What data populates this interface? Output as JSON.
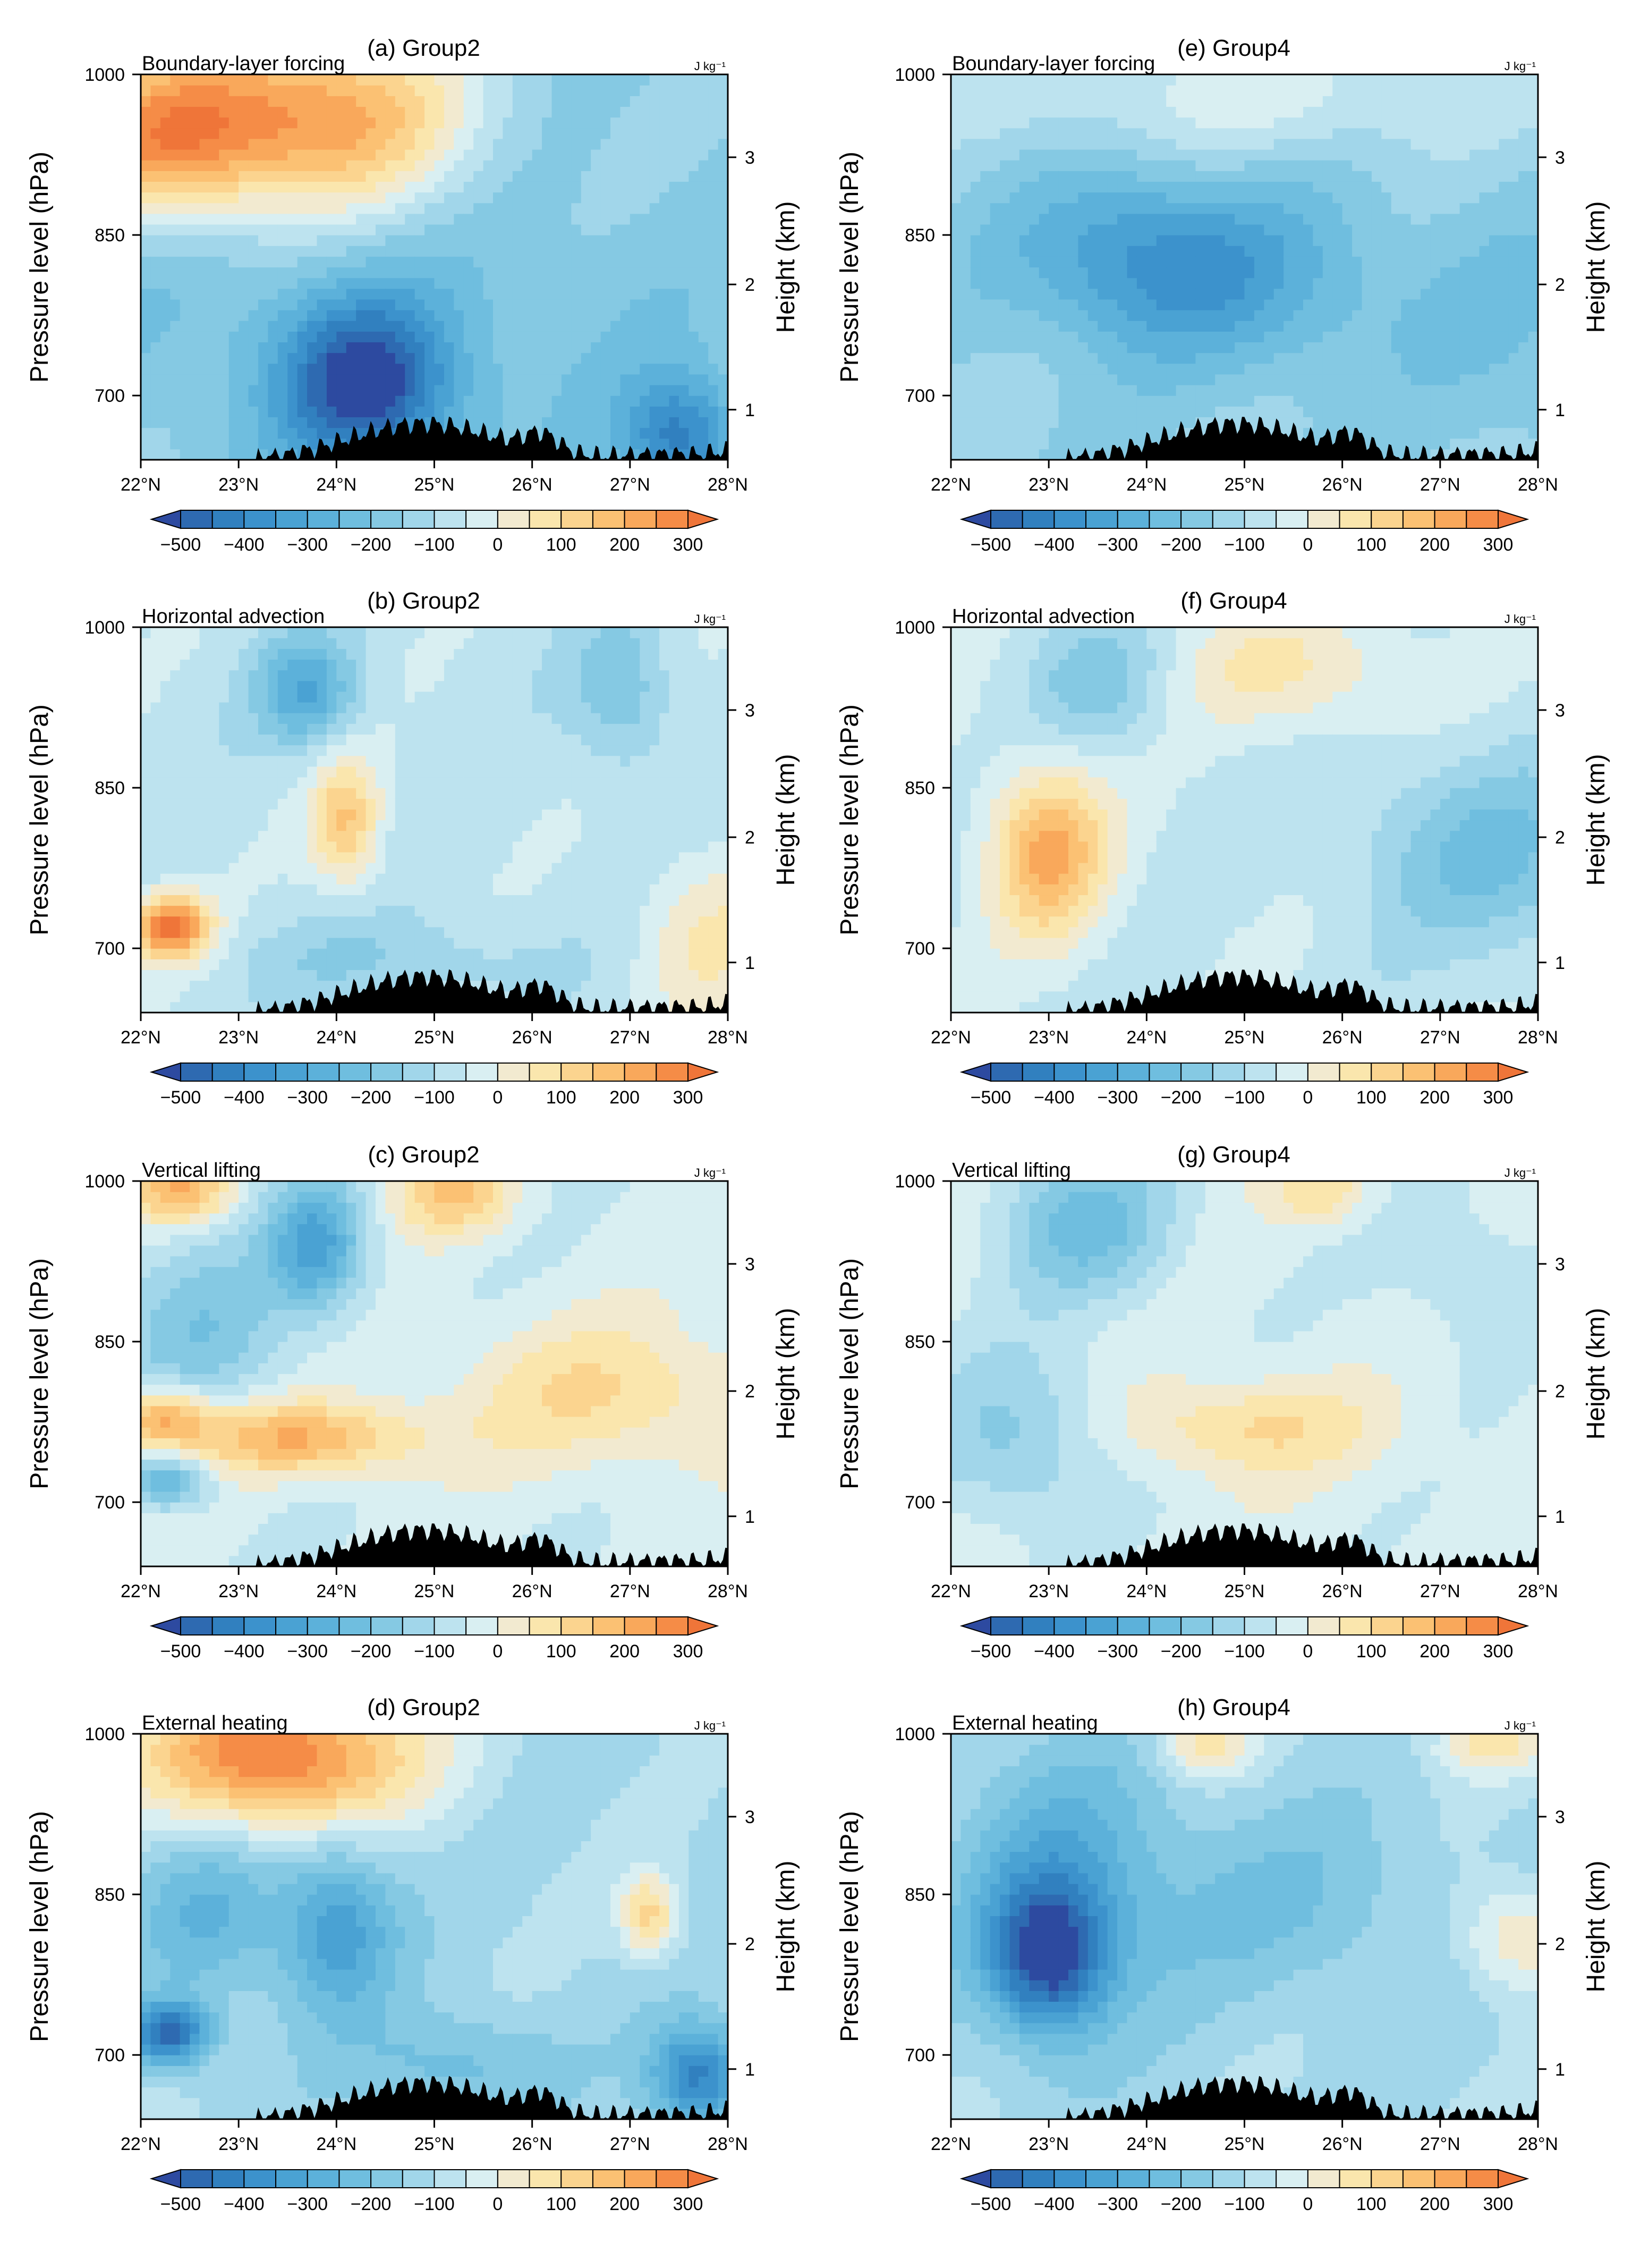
{
  "figure": {
    "colorbar": {
      "levels": [
        -500,
        -450,
        -400,
        -350,
        -300,
        -250,
        -200,
        -150,
        -100,
        -50,
        0,
        50,
        100,
        150,
        200,
        250,
        300
      ],
      "tick_labels": [
        "−500",
        "−400",
        "−300",
        "−200",
        "−100",
        "0",
        "100",
        "200",
        "300"
      ],
      "colors": [
        "#2d4aa0",
        "#2e6ab1",
        "#3180bf",
        "#3c92cc",
        "#4aa2d3",
        "#5cb1da",
        "#6fbedf",
        "#85c9e3",
        "#a1d6ea",
        "#bde3ef",
        "#d9eff2",
        "#f2ead0",
        "#fae6ad",
        "#fbd48f",
        "#fbc173",
        "#f9a85b",
        "#f58c47",
        "#ef7539"
      ]
    },
    "axes": {
      "left_label": "Pressure level (hPa)",
      "right_label": "Height (km)",
      "pressure_ticks": [
        "700",
        "850",
        "1000"
      ],
      "height_ticks": [
        "3",
        "2",
        "1"
      ],
      "lat_ticks": [
        "22°N",
        "23°N",
        "24°N",
        "25°N",
        "26°N",
        "27°N",
        "28°N"
      ],
      "unit": "J kg⁻¹",
      "lat_range": [
        22,
        28
      ],
      "pressure_range": [
        1000,
        640
      ]
    }
  },
  "panels": [
    {
      "title": "(a) Group2",
      "label": "Boundary-layer forcing"
    },
    {
      "title": "(e) Group4",
      "label": "Boundary-layer forcing"
    },
    {
      "title": "(b) Group2",
      "label": "Horizontal advection"
    },
    {
      "title": "(f) Group4",
      "label": "Horizontal advection"
    },
    {
      "title": "(c) Group2",
      "label": "Vertical lifting"
    },
    {
      "title": "(g) Group4",
      "label": "Vertical lifting"
    },
    {
      "title": "(d) Group2",
      "label": "External heating"
    },
    {
      "title": "(h) Group4",
      "label": "External heating"
    }
  ],
  "chart_data": [
    {
      "type": "heatmap",
      "title": "(a) Group2",
      "annotation": "Boundary-layer forcing",
      "xlabel": "",
      "ylabel": "Pressure level (hPa)",
      "y2label": "Height (km)",
      "xlim": [
        22,
        28
      ],
      "ylim": [
        1000,
        640
      ],
      "features": [
        {
          "lat": 23.8,
          "p": 680,
          "value": 250,
          "sx": 1.5,
          "sy": 90
        },
        {
          "lat": 22.2,
          "p": 700,
          "value": 180,
          "sx": 1.0,
          "sy": 80
        },
        {
          "lat": 24.3,
          "p": 930,
          "value": -520,
          "sx": 0.9,
          "sy": 80
        },
        {
          "lat": 27.5,
          "p": 980,
          "value": -420,
          "sx": 0.6,
          "sy": 60
        },
        {
          "lat": 23.0,
          "p": 850,
          "value": -200,
          "sx": 2.5,
          "sy": 150
        },
        {
          "lat": 26.5,
          "p": 870,
          "value": -180,
          "sx": 2.0,
          "sy": 150
        }
      ],
      "background": -150
    },
    {
      "type": "heatmap",
      "title": "(e) Group4",
      "annotation": "Boundary-layer forcing",
      "xlabel": "",
      "ylabel": "Pressure level (hPa)",
      "y2label": "Height (km)",
      "xlim": [
        22,
        28
      ],
      "ylim": [
        1000,
        640
      ],
      "features": [
        {
          "lat": 23.9,
          "p": 810,
          "value": -330,
          "sx": 1.3,
          "sy": 80
        },
        {
          "lat": 25.2,
          "p": 840,
          "value": -250,
          "sx": 1.6,
          "sy": 90
        },
        {
          "lat": 27.8,
          "p": 880,
          "value": -200,
          "sx": 1.0,
          "sy": 120
        },
        {
          "lat": 25.0,
          "p": 660,
          "value": -30,
          "sx": 3.0,
          "sy": 60
        }
      ],
      "background": -140
    },
    {
      "type": "heatmap",
      "title": "(b) Group2",
      "annotation": "Horizontal advection",
      "xlabel": "",
      "ylabel": "Pressure level (hPa)",
      "y2label": "Height (km)",
      "xlim": [
        22,
        28
      ],
      "ylim": [
        1000,
        640
      ],
      "features": [
        {
          "lat": 22.3,
          "p": 920,
          "value": 320,
          "sx": 0.4,
          "sy": 30
        },
        {
          "lat": 24.1,
          "p": 820,
          "value": 150,
          "sx": 0.35,
          "sy": 60
        },
        {
          "lat": 23.7,
          "p": 700,
          "value": -300,
          "sx": 0.5,
          "sy": 50
        },
        {
          "lat": 26.9,
          "p": 700,
          "value": -200,
          "sx": 0.5,
          "sy": 70
        },
        {
          "lat": 24.5,
          "p": 950,
          "value": -150,
          "sx": 1.5,
          "sy": 40
        },
        {
          "lat": 27.8,
          "p": 930,
          "value": 50,
          "sx": 0.7,
          "sy": 80
        }
      ],
      "background": -70
    },
    {
      "type": "heatmap",
      "title": "(f) Group4",
      "annotation": "Horizontal advection",
      "xlabel": "",
      "ylabel": "Pressure level (hPa)",
      "y2label": "Height (km)",
      "xlim": [
        22,
        28
      ],
      "ylim": [
        1000,
        640
      ],
      "features": [
        {
          "lat": 23.0,
          "p": 850,
          "value": 210,
          "sx": 0.6,
          "sy": 80
        },
        {
          "lat": 23.5,
          "p": 690,
          "value": -180,
          "sx": 0.7,
          "sy": 60
        },
        {
          "lat": 27.5,
          "p": 850,
          "value": -210,
          "sx": 1.3,
          "sy": 90
        },
        {
          "lat": 25.5,
          "p": 680,
          "value": 60,
          "sx": 1.2,
          "sy": 60
        }
      ],
      "background": -60
    },
    {
      "type": "heatmap",
      "title": "(c) Group2",
      "annotation": "Vertical lifting",
      "xlabel": "",
      "ylabel": "Pressure level (hPa)",
      "y2label": "Height (km)",
      "xlim": [
        22,
        28
      ],
      "ylim": [
        1000,
        640
      ],
      "features": [
        {
          "lat": 23.8,
          "p": 700,
          "value": -320,
          "sx": 0.5,
          "sy": 60
        },
        {
          "lat": 22.6,
          "p": 780,
          "value": -180,
          "sx": 0.9,
          "sy": 90
        },
        {
          "lat": 23.6,
          "p": 880,
          "value": 210,
          "sx": 1.2,
          "sy": 35
        },
        {
          "lat": 22.2,
          "p": 860,
          "value": 220,
          "sx": 0.5,
          "sy": 30
        },
        {
          "lat": 22.3,
          "p": 920,
          "value": -260,
          "sx": 0.4,
          "sy": 25
        },
        {
          "lat": 26.8,
          "p": 840,
          "value": 100,
          "sx": 1.6,
          "sy": 70
        },
        {
          "lat": 22.4,
          "p": 650,
          "value": 200,
          "sx": 0.5,
          "sy": 30
        },
        {
          "lat": 25.2,
          "p": 650,
          "value": 150,
          "sx": 0.6,
          "sy": 40
        }
      ],
      "background": -40
    },
    {
      "type": "heatmap",
      "title": "(g) Group4",
      "annotation": "Vertical lifting",
      "xlabel": "",
      "ylabel": "Pressure level (hPa)",
      "y2label": "Height (km)",
      "xlim": [
        22,
        28
      ],
      "ylim": [
        1000,
        640
      ],
      "features": [
        {
          "lat": 23.4,
          "p": 680,
          "value": -220,
          "sx": 0.9,
          "sy": 70
        },
        {
          "lat": 22.7,
          "p": 880,
          "value": -170,
          "sx": 0.9,
          "sy": 80
        },
        {
          "lat": 25.0,
          "p": 870,
          "value": 110,
          "sx": 1.3,
          "sy": 45
        },
        {
          "lat": 27.2,
          "p": 720,
          "value": -90,
          "sx": 0.9,
          "sy": 80
        },
        {
          "lat": 25.8,
          "p": 650,
          "value": 100,
          "sx": 0.5,
          "sy": 30
        }
      ],
      "background": -30
    },
    {
      "type": "heatmap",
      "title": "(d) Group2",
      "annotation": "External heating",
      "xlabel": "",
      "ylabel": "Pressure level (hPa)",
      "y2label": "Height (km)",
      "xlim": [
        22,
        28
      ],
      "ylim": [
        1000,
        640
      ],
      "features": [
        {
          "lat": 23.4,
          "p": 660,
          "value": 320,
          "sx": 1.4,
          "sy": 70
        },
        {
          "lat": 22.3,
          "p": 920,
          "value": -480,
          "sx": 0.4,
          "sy": 30
        },
        {
          "lat": 24.0,
          "p": 820,
          "value": -340,
          "sx": 0.6,
          "sy": 80
        },
        {
          "lat": 27.7,
          "p": 960,
          "value": -430,
          "sx": 0.5,
          "sy": 50
        },
        {
          "lat": 25.2,
          "p": 950,
          "value": -230,
          "sx": 1.0,
          "sy": 50
        },
        {
          "lat": 27.2,
          "p": 810,
          "value": 120,
          "sx": 0.3,
          "sy": 40
        },
        {
          "lat": 22.7,
          "p": 810,
          "value": -250,
          "sx": 0.7,
          "sy": 80
        }
      ],
      "background": -110
    },
    {
      "type": "heatmap",
      "title": "(h) Group4",
      "annotation": "External heating",
      "xlabel": "",
      "ylabel": "Pressure level (hPa)",
      "y2label": "Height (km)",
      "xlim": [
        22,
        28
      ],
      "ylim": [
        1000,
        640
      ],
      "features": [
        {
          "lat": 23.0,
          "p": 850,
          "value": -480,
          "sx": 0.6,
          "sy": 70
        },
        {
          "lat": 23.2,
          "p": 780,
          "value": -280,
          "sx": 1.1,
          "sy": 120
        },
        {
          "lat": 25.5,
          "p": 800,
          "value": -200,
          "sx": 1.4,
          "sy": 90
        },
        {
          "lat": 27.8,
          "p": 830,
          "value": 60,
          "sx": 0.6,
          "sy": 50
        },
        {
          "lat": 27.5,
          "p": 650,
          "value": 60,
          "sx": 0.6,
          "sy": 30
        },
        {
          "lat": 24.6,
          "p": 650,
          "value": 80,
          "sx": 0.5,
          "sy": 30
        }
      ],
      "background": -110
    }
  ]
}
